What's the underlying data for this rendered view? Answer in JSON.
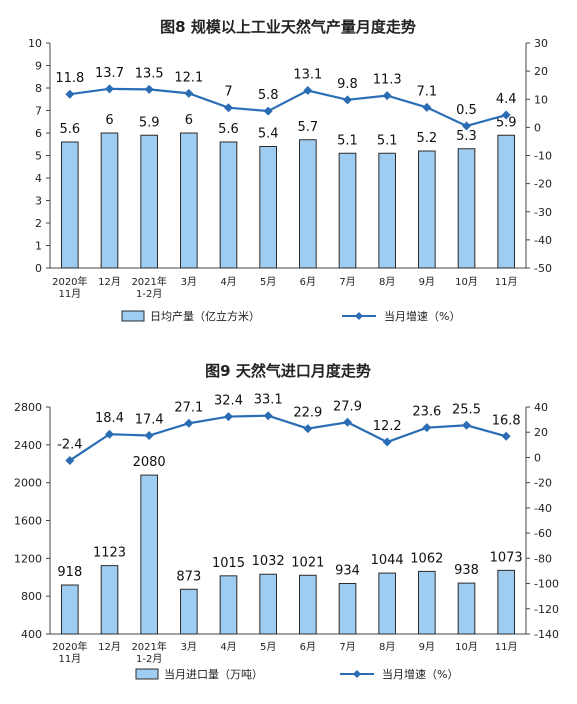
{
  "chart_data": [
    {
      "type": "bar+line",
      "title": "图8 规模以上工业天然气产量月度走势",
      "categories": [
        [
          "2020年",
          "11月"
        ],
        [
          "12月"
        ],
        [
          "2021年",
          "1-2月"
        ],
        [
          "3月"
        ],
        [
          "4月"
        ],
        [
          "5月"
        ],
        [
          "6月"
        ],
        [
          "7月"
        ],
        [
          "8月"
        ],
        [
          "9月"
        ],
        [
          "10月"
        ],
        [
          "11月"
        ]
      ],
      "series": [
        {
          "name": "日均产量（亿立方米）",
          "kind": "bar",
          "axis": "left",
          "values": [
            5.6,
            6.0,
            5.9,
            6.0,
            5.6,
            5.4,
            5.7,
            5.1,
            5.1,
            5.2,
            5.3,
            5.9
          ]
        },
        {
          "name": "当月增速（%）",
          "kind": "line",
          "axis": "right",
          "values": [
            11.8,
            13.7,
            13.5,
            12.1,
            7.0,
            5.8,
            13.1,
            9.8,
            11.3,
            7.1,
            0.5,
            4.4
          ]
        }
      ],
      "y_left": {
        "min": 0,
        "max": 10,
        "ticks": [
          "0",
          "1",
          "2",
          "3",
          "4",
          "5",
          "6",
          "7",
          "8",
          "9",
          "10"
        ]
      },
      "y_right": {
        "min": -50,
        "max": 30,
        "ticks": [
          "-50",
          "-40",
          "-30",
          "-20",
          "-10",
          "0",
          "10",
          "20",
          "30"
        ]
      },
      "legend_position": "bottom",
      "colors": {
        "bar_fill": "#9fcdf2",
        "bar_stroke": "#2b2b2b",
        "line": "#2a6db5"
      }
    },
    {
      "type": "bar+line",
      "title": "图9 天然气进口月度走势",
      "categories": [
        [
          "2020年",
          "11月"
        ],
        [
          "12月"
        ],
        [
          "2021年",
          "1-2月"
        ],
        [
          "3月"
        ],
        [
          "4月"
        ],
        [
          "5月"
        ],
        [
          "6月"
        ],
        [
          "7月"
        ],
        [
          "8月"
        ],
        [
          "9月"
        ],
        [
          "10月"
        ],
        [
          "11月"
        ]
      ],
      "series": [
        {
          "name": "当月进口量（万吨）",
          "kind": "bar",
          "axis": "left",
          "values": [
            918,
            1123,
            2080,
            873,
            1015,
            1032,
            1021,
            934,
            1044,
            1062,
            938,
            1073
          ]
        },
        {
          "name": "当月增速（%）",
          "kind": "line",
          "axis": "right",
          "values": [
            -2.4,
            18.4,
            17.4,
            27.1,
            32.4,
            33.1,
            22.9,
            27.9,
            12.2,
            23.6,
            25.5,
            16.8
          ]
        }
      ],
      "y_left": {
        "min": 400,
        "max": 2800,
        "ticks": [
          "400",
          "800",
          "1200",
          "1600",
          "2000",
          "2400",
          "2800"
        ]
      },
      "y_right": {
        "min": -140,
        "max": 40,
        "ticks": [
          "-140",
          "-120",
          "-100",
          "-80",
          "-60",
          "-40",
          "-20",
          "0",
          "20",
          "40"
        ]
      },
      "legend_position": "bottom",
      "colors": {
        "bar_fill": "#9fcdf2",
        "bar_stroke": "#2b2b2b",
        "line": "#2a6db5"
      }
    }
  ]
}
